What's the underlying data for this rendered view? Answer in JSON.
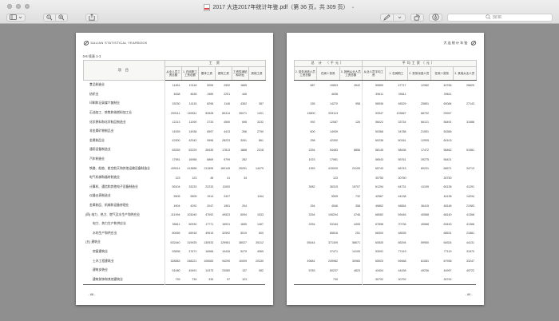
{
  "window": {
    "title": "2017 大连2017年统计年鉴.pdf（第 36 页，共 309 页）",
    "title_chevron": "⌄"
  },
  "toolbar": {
    "icons": {
      "view_menu": "sidebar-icon",
      "zoom_out": "magnifier-minus-icon",
      "zoom_in": "magnifier-plus-icon",
      "share": "share-icon",
      "markup_pen": "pen-icon",
      "markup_menu": "chevron-down-icon",
      "rotate": "rotate-left-icon",
      "annotate": "pencil-circle-icon",
      "search": "magnifier-icon"
    },
    "search_placeholder": "搜索"
  },
  "colors": {
    "toolbar_bg": "#ececec",
    "content_bg": "#8f8f8f",
    "page_bg": "#ffffff",
    "table_rule": "#555555",
    "header_grid": "#c9c9c9"
  },
  "document": {
    "pages": [
      {
        "header_text": "DALIAN STATISTICAL YEARBOOK",
        "table_label": "3-6 续表 1-1",
        "footer": "- 68 -",
        "table": {
          "item_header": "项    目",
          "group_headers": [
            {
              "label": "工    资",
              "span": 6
            }
          ],
          "columns": [
            "从业人员工资总额",
            "1. 在岗职工工资总额",
            "基本工资",
            "绩效工资",
            "工资性津贴和补贴",
            "其他工资"
          ],
          "rows": [
            {
              "label": "食品制造业",
              "indent": 1,
              "values": [
                "11461",
                "10116",
                "5059",
                "2592",
                "1665",
                ""
              ]
            },
            {
              "label": "纺织业",
              "indent": 1,
              "values": [
                "4638",
                "4638",
                "1989",
                "2201",
                "446",
                ""
              ]
            },
            {
              "label": "印刷和记录媒介复制业",
              "indent": 1,
              "values": [
                "15230",
                "14115",
                "8298",
                "1146",
                "4362",
                "387"
              ]
            },
            {
              "label": "石油加工、炼焦和核燃料加工业",
              "indent": 1,
              "values": [
                "209111",
                "169511",
                "52628",
                "80414",
                "35071",
                "1401"
              ]
            },
            {
              "label": "化学原料和化学制品制造业",
              "indent": 1,
              "values": [
                "12213",
                "11090",
                "2733",
                "4590",
                "698",
                "3232"
              ]
            },
            {
              "label": "非金属矿物制品业",
              "indent": 1,
              "values": [
                "14939",
                "14938",
                "6597",
                "4413",
                "266",
                "2790"
              ]
            },
            {
              "label": "金属制品业",
              "indent": 1,
              "values": [
                "42300",
                "42042",
                "9996",
                "28223",
                "3261",
                "861"
              ]
            },
            {
              "label": "通用设备制造业",
              "indent": 1,
              "values": [
                "63339",
                "52229",
                "28439",
                "17813",
                "1868",
                "2318"
              ]
            },
            {
              "label": "汽车制造业",
              "indent": 1,
              "values": [
                "17981",
                "16958",
                "6869",
                "9799",
                "282",
                ""
              ]
            },
            {
              "label": "铁路、船舶、航空航天和其他运输设备制造业",
              "indent": 1,
              "values": [
                "439114",
                "413656",
                "211599",
                "160145",
                "25251",
                "14479"
              ]
            },
            {
              "label": "电气机械和器材制造业",
              "indent": 1,
              "values": [
                "123",
                "123",
                "45",
                "41",
                "34",
                ""
              ]
            },
            {
              "label": "计算机、通信和其他电子设备制造业",
              "indent": 1,
              "values": [
                "55104",
                "33233",
                "22233",
                "11000",
                "",
                ""
              ]
            },
            {
              "label": "仪器仪表制造业",
              "indent": 1,
              "values": [
                "5505",
                "5505",
                "1914",
                "2427",
                "",
                "1164"
              ]
            },
            {
              "label": "金属制品、机械和设备修理业",
              "indent": 1,
              "values": [
                "4904",
                "4292",
                "2047",
                "1951",
                "204",
                ""
              ]
            },
            {
              "label": "(四) 电力、热力、燃气及水生产和供应业",
              "indent": 0,
              "values": [
                "111994",
                "103040",
                "47092",
                "49523",
                "6094",
                "1533"
              ]
            },
            {
              "label": "电力、热力生产和供应业",
              "indent": 2,
              "values": [
                "55611",
                "50930",
                "17771",
                "16931",
                "1655",
                "1467"
              ]
            },
            {
              "label": "水的生产和供应业",
              "indent": 2,
              "values": [
                "80065",
                "65918",
                "49519",
                "32592",
                "5019",
                "600"
              ]
            },
            {
              "label": "(五) 建筑业",
              "indent": 0,
              "values": [
                "632440",
                "319925",
                "130933",
                "129981",
                "38027",
                "26112"
              ]
            },
            {
              "label": "房屋建筑业",
              "indent": 2,
              "values": [
                "53836",
                "37471",
                "16966",
                "10426",
                "5279",
                "4969"
              ]
            },
            {
              "label": "土木工程建筑业",
              "indent": 2,
              "values": [
                "328583",
                "248221",
                "105083",
                "94290",
                "10009",
                "20330"
              ]
            },
            {
              "label": "建筑安装业",
              "indent": 2,
              "values": [
                "51080",
                "49491",
                "14373",
                "23080",
                "137",
                "982"
              ]
            },
            {
              "label": "建筑装饰和其他建筑业",
              "indent": 2,
              "values": [
                "739",
                "739",
                "339",
                "97",
                "123",
                ""
              ]
            }
          ]
        }
      },
      {
        "header_text": "大连统计年鉴",
        "table_label": "",
        "footer": "- 69 -",
        "table": {
          "group_headers": [
            {
              "label": "总    计 （千元）",
              "span": 3
            },
            {
              "label": "平均工资（元）",
              "span": 5
            }
          ],
          "columns": [
            "2. 劳务派遣人员工资总额",
            "在岗＋劳务",
            "3. 其他从业人员工资总额",
            "从业人员平均工资",
            "1. 在岗职工",
            "2. 劳务派遣人员",
            "在岗＋劳务",
            "3. 其他从业人员"
          ],
          "rows": [
            {
              "values": [
                "687",
                "10803",
                "2842",
                "50890",
                "47717",
                "12982",
                "40766",
                "26629"
              ]
            },
            {
              "values": [
                "",
                "4638",
                "",
                "39611",
                "39611",
                "",
                "39611",
                ""
              ]
            },
            {
              "values": [
                "155",
                "14270",
                "958",
                "58936",
                "48329",
                "25851",
                "60084",
                "27143"
              ]
            },
            {
              "values": [
                "19800",
                "209113",
                "",
                "93947",
                "103667",
                "68792",
                "93947",
                ""
              ]
            },
            {
              "values": [
                "992",
                "12087",
                "126",
                "56022",
                "33734",
                "66121",
                "56491",
                "31588"
              ]
            },
            {
              "values": [
                "600",
                "14939",
                "",
                "50366",
                "34788",
                "21951",
                "50366",
                ""
              ]
            },
            {
              "values": [
                "258",
                "42300",
                "",
                "60236",
                "60161",
                "12905",
                "60103",
                ""
              ]
            },
            {
              "values": [
                "2254",
                "54483",
                "8856",
                "58145",
                "58436",
                "17472",
                "56462",
                "51581"
              ]
            },
            {
              "values": [
                "1023",
                "17981",
                "",
                "56543",
                "56761",
                "39275",
                "56421",
                ""
              ]
            },
            {
              "values": [
                "1353",
                "415009",
                "24105",
                "65743",
                "66743",
                "60231",
                "66571",
                "34713"
              ]
            },
            {
              "values": [
                "",
                "123",
                "",
                "30750",
                "30750",
                "",
                "30750",
                ""
              ]
            },
            {
              "values": [
                "3082",
                "36315",
                "15707",
                "61294",
                "64731",
                "41199",
                "60138",
                "41291"
              ]
            },
            {
              "values": [
                "",
                "5505",
                "732",
                "42567",
                "44138",
                "",
                "44138",
                "14294"
              ]
            },
            {
              "values": [
                "254",
                "4546",
                "358",
                "49862",
                "48654",
                "36415",
                "48148",
                "21983"
              ]
            },
            {
              "values": [
                "3254",
                "106294",
                "4746",
                "68082",
                "69446",
                "40568",
                "68140",
                "41368"
              ]
            },
            {
              "values": [
                "2254",
                "53184",
                "4495",
                "67858",
                "70736",
                "40568",
                "69443",
                "41368"
              ]
            },
            {
              "values": [
                "",
                "85816",
                "251",
                "68300",
                "48535",
                "",
                "68531",
                "21881"
              ]
            },
            {
              "values": [
                "55444",
                "371309",
                "58671",
                "60830",
                "65294",
                "59950",
                "64524",
                "44131"
              ]
            },
            {
              "values": [
                "",
                "37471",
                "14105",
                "53091",
                "77419",
                "",
                "77119",
                "31570"
              ]
            },
            {
              "values": [
                "49681",
                "249982",
                "30983",
                "65920",
                "69468",
                "61081",
                "67936",
                "33247"
              ]
            },
            {
              "values": [
                "5783",
                "60237",
                "4823",
                "43404",
                "44438",
                "49236",
                "44997",
                "49722"
              ]
            },
            {
              "values": [
                "",
                "739",
                "",
                "30792",
                "30792",
                "",
                "30792",
                ""
              ]
            }
          ]
        }
      }
    ]
  }
}
